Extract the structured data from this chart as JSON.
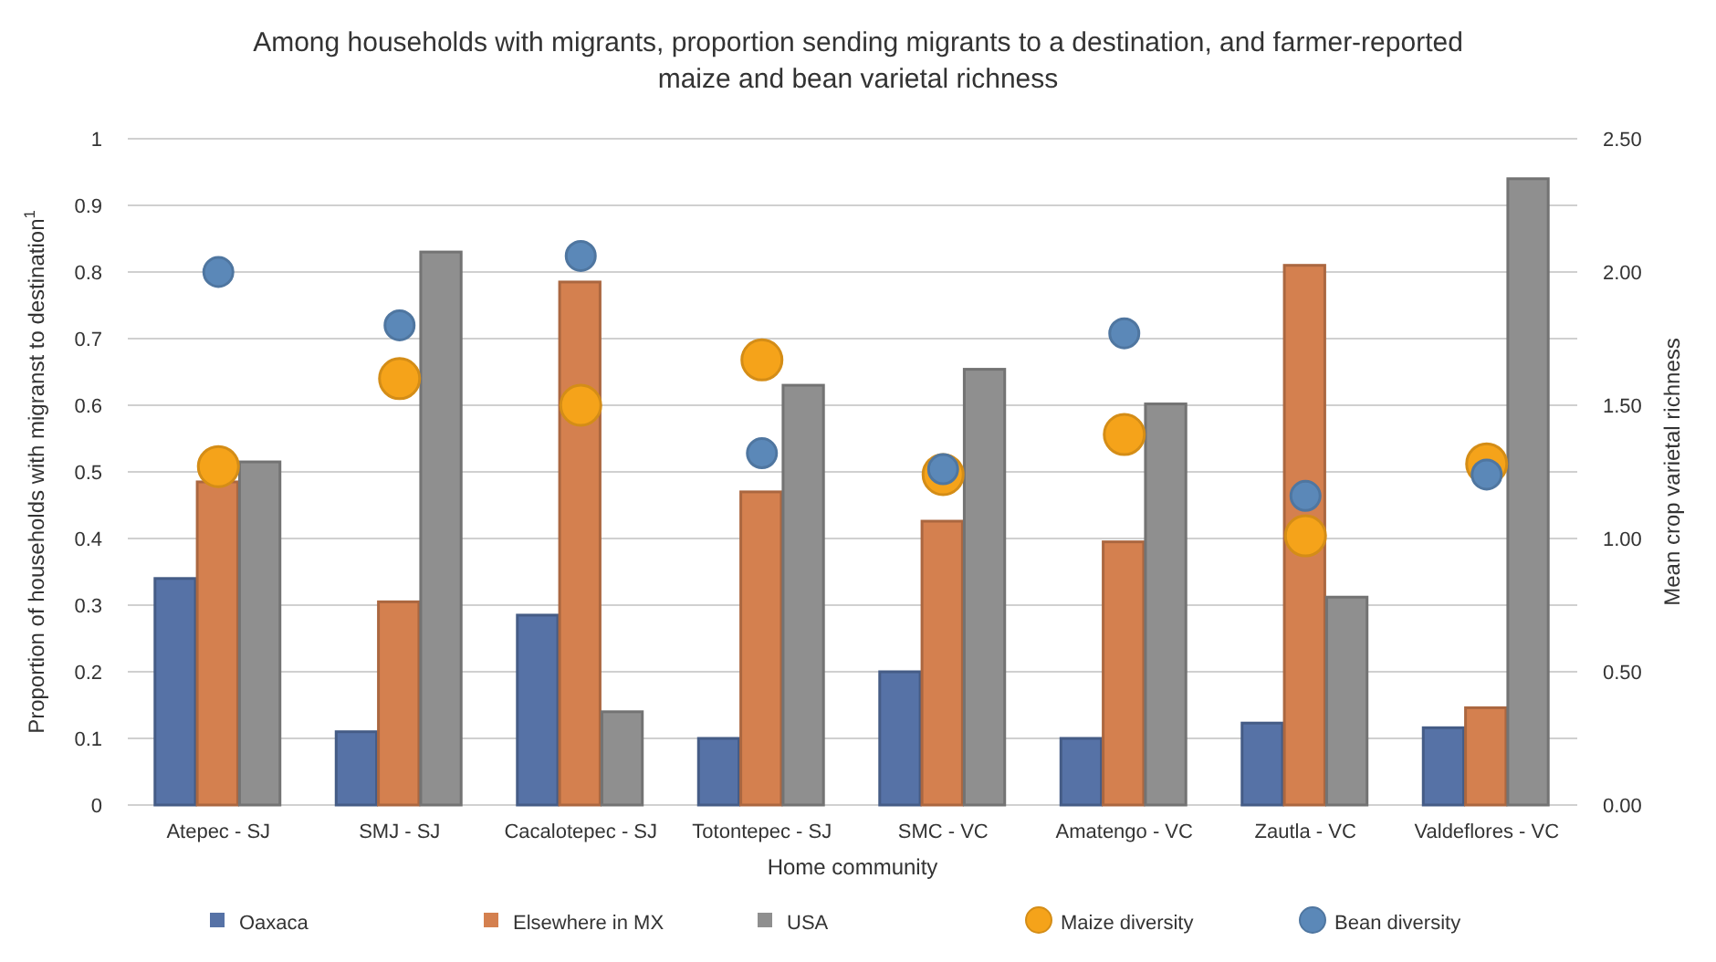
{
  "chart_data": {
    "type": "bar",
    "title": "Among households with migrants, proportion sending migrants to a destination, and farmer-reported maize and bean varietal richness",
    "xlabel": "Home community",
    "ylabel": "Proportion of households with migranst to destination$^{1}$",
    "y2label": "Mean crop varietal richness",
    "categories": [
      "Atepec - SJ",
      "SMJ - SJ",
      "Cacalotepec - SJ",
      "Totontepec - SJ",
      "SMC - VC",
      "Amatengo - VC",
      "Zautla - VC",
      "Valdeflores - VC"
    ],
    "series": [
      {
        "name": "Oaxaca",
        "color": "#5672a6",
        "values": [
          0.34,
          0.11,
          0.285,
          0.1,
          0.2,
          0.1,
          0.123,
          0.116
        ]
      },
      {
        "name": "Elsewhere in MX",
        "color": "#d4804f",
        "values": [
          0.485,
          0.305,
          0.785,
          0.47,
          0.426,
          0.395,
          0.81,
          0.146
        ]
      },
      {
        "name": "USA",
        "color": "#8f8f8f",
        "values": [
          0.515,
          0.83,
          0.14,
          0.63,
          0.654,
          0.602,
          0.312,
          0.94
        ]
      },
      {
        "name": "Maize diversity",
        "type": "scatter",
        "axis": "y2",
        "color": "#f5a31a",
        "values": [
          1.27,
          1.6,
          1.5,
          1.67,
          1.24,
          1.39,
          1.01,
          1.28
        ]
      },
      {
        "name": "Bean diversity",
        "type": "scatter",
        "axis": "y2",
        "color": "#5b88b8",
        "values": [
          2.0,
          1.8,
          2.06,
          1.32,
          1.26,
          1.77,
          1.16,
          1.24
        ]
      }
    ],
    "ylim": [
      0,
      1
    ],
    "yticks": [
      0,
      0.1,
      0.2,
      0.3,
      0.4,
      0.5,
      0.6,
      0.7,
      0.8,
      0.9,
      1
    ],
    "y2lim": [
      0,
      2.5
    ],
    "y2ticks": [
      {
        "value": 0,
        "label": "0.00"
      },
      {
        "value": 0.5,
        "label": "0.50"
      },
      {
        "value": 1,
        "label": "1.00"
      },
      {
        "value": 1.5,
        "label": "1.50"
      },
      {
        "value": 2,
        "label": "2.00"
      },
      {
        "value": 2.5,
        "label": "2.50"
      }
    ],
    "grid": "y",
    "legend": "bottom",
    "marker": "circle"
  }
}
